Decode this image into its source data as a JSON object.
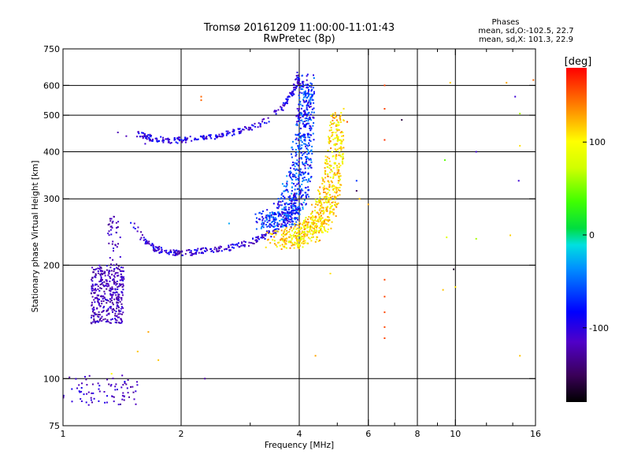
{
  "chart_data": {
    "type": "scatter",
    "title": "Tromsø 20161209 11:00:00-11:01:43",
    "subtitle": "RwPretec (8p)",
    "xlabel": "Frequency [MHz]",
    "ylabel": "Stationary phase Virtual Height [km]",
    "x_scale": "log",
    "y_scale": "log",
    "xlim": [
      1,
      16
    ],
    "ylim": [
      75,
      750
    ],
    "x_ticks": [
      {
        "v": 1,
        "label": "1"
      },
      {
        "v": 2,
        "label": "2"
      },
      {
        "v": 4,
        "label": "4"
      },
      {
        "v": 6,
        "label": "6"
      },
      {
        "v": 8,
        "label": "8"
      },
      {
        "v": 10,
        "label": "10"
      },
      {
        "v": 16,
        "label": "16"
      }
    ],
    "x_minor": [
      3,
      5,
      7,
      9,
      12,
      14
    ],
    "y_ticks": [
      {
        "v": 75,
        "label": "75"
      },
      {
        "v": 100,
        "label": "100"
      },
      {
        "v": 200,
        "label": "200"
      },
      {
        "v": 300,
        "label": "300"
      },
      {
        "v": 400,
        "label": "400"
      },
      {
        "v": 500,
        "label": "500"
      },
      {
        "v": 600,
        "label": "600"
      },
      {
        "v": 750,
        "label": "750"
      }
    ],
    "grid_x": [
      2,
      4,
      6,
      8,
      10,
      16
    ],
    "grid_y": [
      100,
      200,
      300,
      400,
      500,
      600
    ],
    "grid": true,
    "stats": {
      "heading": "Phases",
      "line_o": "mean, sd,O:-102.5, 22.7",
      "line_x": "mean, sd,X: 101.3, 22.9"
    },
    "colorbar": {
      "label": "[deg]",
      "range": [
        -180,
        180
      ],
      "ticks": [
        {
          "v": 100,
          "label": "100"
        },
        {
          "v": 0,
          "label": "0"
        },
        {
          "v": -100,
          "label": "-100"
        }
      ]
    },
    "series": [
      {
        "kind": "E-layer low",
        "f_range": [
          1.0,
          1.55
        ],
        "h_range": [
          85,
          102
        ],
        "phase": -115,
        "count": 80
      },
      {
        "kind": "Es patch",
        "f_range": [
          1.18,
          1.43
        ],
        "h_range": [
          140,
          200
        ],
        "phase": -118,
        "count": 360
      },
      {
        "kind": "Es spike",
        "f_range": [
          1.3,
          1.4
        ],
        "h_range": [
          200,
          270
        ],
        "phase": -118,
        "count": 40
      },
      {
        "kind": "F trace low",
        "f": [
          1.5,
          1.6,
          1.7,
          1.8,
          1.9,
          2.0,
          2.1,
          2.2,
          2.4,
          2.6,
          2.8,
          3.0,
          3.2,
          3.4,
          3.6,
          3.8,
          3.95
        ],
        "h": [
          258,
          235,
          222,
          218,
          216,
          215,
          216,
          218,
          220,
          222,
          225,
          230,
          236,
          244,
          256,
          278,
          320
        ],
        "phase": -110
      },
      {
        "kind": "F trace upper",
        "f": [
          1.55,
          1.7,
          1.9,
          2.1,
          2.4,
          2.8,
          3.2,
          3.6,
          3.9,
          4.0
        ],
        "h": [
          445,
          432,
          428,
          432,
          440,
          452,
          475,
          520,
          590,
          640
        ],
        "phase": -105
      },
      {
        "kind": "O trace cusp",
        "f": [
          3.4,
          3.6,
          3.8,
          3.95,
          4.05,
          4.12,
          4.17,
          4.2
        ],
        "h": [
          260,
          268,
          285,
          320,
          370,
          440,
          520,
          620
        ],
        "phase": -80
      },
      {
        "kind": "X trace cusp",
        "f": [
          3.6,
          3.9,
          4.2,
          4.5,
          4.7,
          4.85,
          4.95,
          5.0
        ],
        "h": [
          232,
          236,
          245,
          262,
          290,
          330,
          400,
          500
        ],
        "phase": 110
      },
      {
        "kind": "scattered",
        "points": [
          [
            1.38,
            450,
            -120
          ],
          [
            1.45,
            440,
            -118
          ],
          [
            1.62,
            420,
            -110
          ],
          [
            1.8,
            430,
            -108
          ],
          [
            2.25,
            560,
            150
          ],
          [
            2.25,
            548,
            150
          ],
          [
            2.3,
            100,
            -125
          ],
          [
            2.65,
            258,
            -40
          ],
          [
            4.8,
            190,
            110
          ],
          [
            5.0,
            455,
            130
          ],
          [
            5.3,
            480,
            160
          ],
          [
            5.6,
            335,
            -80
          ],
          [
            5.6,
            315,
            -150
          ],
          [
            5.7,
            300,
            120
          ],
          [
            6.0,
            290,
            130
          ],
          [
            6.6,
            600,
            160
          ],
          [
            6.6,
            520,
            160
          ],
          [
            6.6,
            430,
            165
          ],
          [
            6.6,
            183,
            160
          ],
          [
            6.6,
            165,
            160
          ],
          [
            6.6,
            150,
            160
          ],
          [
            6.6,
            137,
            160
          ],
          [
            6.6,
            128,
            160
          ],
          [
            7.3,
            486,
            -160
          ],
          [
            9.3,
            172,
            120
          ],
          [
            9.4,
            380,
            40
          ],
          [
            9.5,
            237,
            80
          ],
          [
            9.7,
            610,
            120
          ],
          [
            9.9,
            195,
            -170
          ],
          [
            10.0,
            175,
            110
          ],
          [
            11.3,
            235,
            60
          ],
          [
            11.3,
            400,
            -110
          ],
          [
            13.5,
            610,
            130
          ],
          [
            13.8,
            240,
            115
          ],
          [
            14.2,
            560,
            -110
          ],
          [
            14.6,
            505,
            60
          ],
          [
            14.6,
            415,
            110
          ],
          [
            14.5,
            335,
            -110
          ],
          [
            14.6,
            115,
            120
          ],
          [
            15.8,
            620,
            150
          ],
          [
            4.4,
            115,
            130
          ],
          [
            1.65,
            133,
            130
          ],
          [
            1.55,
            118,
            120
          ],
          [
            1.75,
            112,
            120
          ],
          [
            1.33,
            103,
            100
          ]
        ]
      }
    ]
  }
}
